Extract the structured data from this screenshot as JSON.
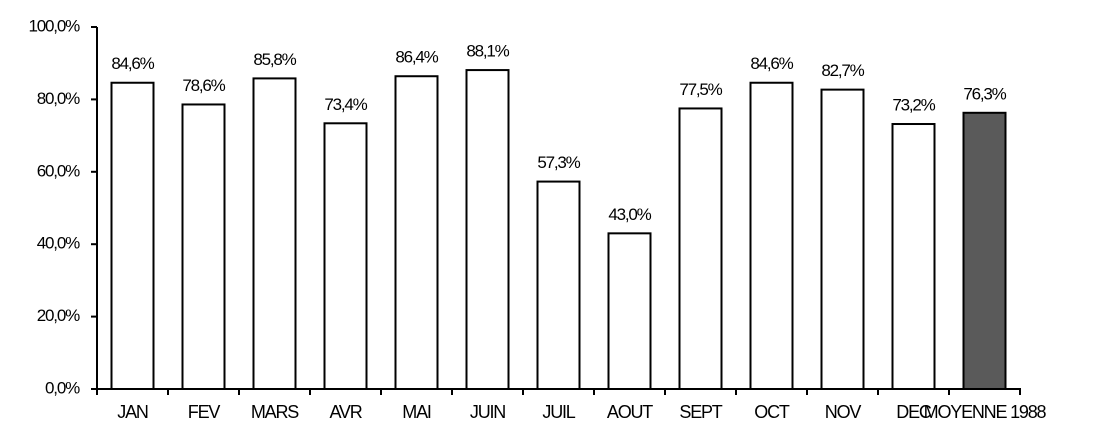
{
  "chart_data": {
    "type": "bar",
    "categories": [
      "JAN",
      "FEV",
      "MARS",
      "AVR",
      "MAI",
      "JUIN",
      "JUIL",
      "AOUT",
      "SEPT",
      "OCT",
      "NOV",
      "DEC",
      "MOYENNE 1988"
    ],
    "values": [
      84.6,
      78.6,
      85.8,
      73.4,
      86.4,
      88.1,
      57.3,
      43.0,
      77.5,
      84.6,
      82.7,
      73.2,
      76.3
    ],
    "value_labels": [
      "84,6%",
      "78,6%",
      "85,8%",
      "73,4%",
      "86,4%",
      "88,1%",
      "57,3%",
      "43,0%",
      "77,5%",
      "84,6%",
      "82,7%",
      "73,2%",
      "76,3%"
    ],
    "colors": [
      "#ffffff",
      "#ffffff",
      "#ffffff",
      "#ffffff",
      "#ffffff",
      "#ffffff",
      "#ffffff",
      "#ffffff",
      "#ffffff",
      "#ffffff",
      "#ffffff",
      "#ffffff",
      "#5a5a5a"
    ],
    "ylim": [
      0,
      100
    ],
    "yticks": [
      {
        "value": 0,
        "label": "0,0%"
      },
      {
        "value": 20,
        "label": "20,0%"
      },
      {
        "value": 40,
        "label": "40,0%"
      },
      {
        "value": 60,
        "label": "60,0%"
      },
      {
        "value": 80,
        "label": "80,0%"
      },
      {
        "value": 100,
        "label": "100,0%"
      }
    ],
    "grid": false
  }
}
